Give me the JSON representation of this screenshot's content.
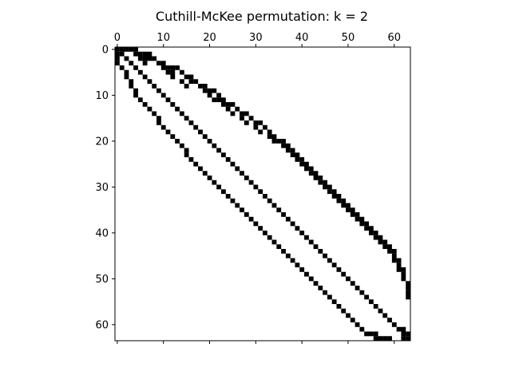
{
  "chart_data": {
    "type": "heatmap",
    "subtype": "sparsity-pattern",
    "title": "Cuthill-McKee permutation: k = 2",
    "matrix_size": 64,
    "x_axis_position": "top",
    "x_ticks": [
      0,
      10,
      20,
      30,
      40,
      50,
      60
    ],
    "y_ticks": [
      0,
      10,
      20,
      30,
      40,
      50,
      60
    ],
    "xlim": [
      -0.5,
      63.5
    ],
    "ylim": [
      63.5,
      -0.5
    ],
    "grid": false,
    "nonzero_color": "#000000",
    "background_color": "#ffffff",
    "description_bands": [
      {
        "name": "main diagonal",
        "offset": 0
      },
      {
        "name": "upper off-diagonal band",
        "offset_from_row": "approx +4 near top, widening to approx +25 at middle, narrowing near bottom"
      },
      {
        "name": "lower off-diagonal band",
        "mirror_of": "upper off-diagonal band"
      }
    ],
    "nonzeros": [
      [
        0,
        0
      ],
      [
        0,
        1
      ],
      [
        0,
        2
      ],
      [
        0,
        3
      ],
      [
        0,
        4
      ],
      [
        1,
        0
      ],
      [
        1,
        1
      ],
      [
        1,
        4
      ],
      [
        1,
        5
      ],
      [
        1,
        6
      ],
      [
        1,
        7
      ],
      [
        2,
        0
      ],
      [
        2,
        2
      ],
      [
        2,
        5
      ],
      [
        2,
        6
      ],
      [
        2,
        7
      ],
      [
        2,
        8
      ],
      [
        3,
        0
      ],
      [
        3,
        3
      ],
      [
        3,
        6
      ],
      [
        3,
        9
      ],
      [
        3,
        10
      ],
      [
        4,
        1
      ],
      [
        4,
        4
      ],
      [
        4,
        10
      ],
      [
        4,
        11
      ],
      [
        4,
        12
      ],
      [
        4,
        13
      ],
      [
        5,
        2
      ],
      [
        5,
        5
      ],
      [
        5,
        11
      ],
      [
        5,
        12
      ],
      [
        5,
        14
      ],
      [
        6,
        2
      ],
      [
        6,
        6
      ],
      [
        6,
        12
      ],
      [
        6,
        15
      ],
      [
        6,
        16
      ],
      [
        7,
        3
      ],
      [
        7,
        7
      ],
      [
        7,
        14
      ],
      [
        7,
        16
      ],
      [
        7,
        17
      ],
      [
        8,
        3
      ],
      [
        8,
        8
      ],
      [
        8,
        15
      ],
      [
        8,
        18
      ],
      [
        8,
        19
      ],
      [
        9,
        4
      ],
      [
        9,
        9
      ],
      [
        9,
        19
      ],
      [
        9,
        20
      ],
      [
        9,
        21
      ],
      [
        10,
        4
      ],
      [
        10,
        10
      ],
      [
        10,
        20
      ],
      [
        10,
        22
      ],
      [
        11,
        5
      ],
      [
        11,
        11
      ],
      [
        11,
        21
      ],
      [
        11,
        22
      ],
      [
        11,
        23
      ],
      [
        12,
        6
      ],
      [
        12,
        12
      ],
      [
        12,
        23
      ],
      [
        12,
        24
      ],
      [
        12,
        25
      ],
      [
        13,
        7
      ],
      [
        13,
        13
      ],
      [
        13,
        24
      ],
      [
        13,
        26
      ],
      [
        14,
        8
      ],
      [
        14,
        14
      ],
      [
        14,
        25
      ],
      [
        14,
        27
      ],
      [
        14,
        28
      ],
      [
        15,
        9
      ],
      [
        15,
        15
      ],
      [
        15,
        27
      ],
      [
        15,
        29
      ],
      [
        16,
        9
      ],
      [
        16,
        16
      ],
      [
        16,
        28
      ],
      [
        16,
        30
      ],
      [
        16,
        31
      ],
      [
        17,
        10
      ],
      [
        17,
        17
      ],
      [
        17,
        30
      ],
      [
        17,
        32
      ],
      [
        18,
        11
      ],
      [
        18,
        18
      ],
      [
        18,
        31
      ],
      [
        18,
        33
      ],
      [
        19,
        12
      ],
      [
        19,
        19
      ],
      [
        19,
        33
      ],
      [
        19,
        34
      ],
      [
        20,
        13
      ],
      [
        20,
        20
      ],
      [
        20,
        34
      ],
      [
        20,
        35
      ],
      [
        20,
        36
      ],
      [
        21,
        14
      ],
      [
        21,
        21
      ],
      [
        21,
        36
      ],
      [
        21,
        37
      ],
      [
        22,
        15
      ],
      [
        22,
        22
      ],
      [
        22,
        37
      ],
      [
        22,
        38
      ],
      [
        23,
        15
      ],
      [
        23,
        23
      ],
      [
        23,
        38
      ],
      [
        23,
        39
      ],
      [
        24,
        16
      ],
      [
        24,
        24
      ],
      [
        24,
        39
      ],
      [
        24,
        40
      ],
      [
        25,
        17
      ],
      [
        25,
        25
      ],
      [
        25,
        40
      ],
      [
        25,
        41
      ],
      [
        26,
        18
      ],
      [
        26,
        26
      ],
      [
        26,
        41
      ],
      [
        26,
        42
      ],
      [
        27,
        19
      ],
      [
        27,
        27
      ],
      [
        27,
        42
      ],
      [
        27,
        43
      ],
      [
        28,
        20
      ],
      [
        28,
        28
      ],
      [
        28,
        43
      ],
      [
        28,
        44
      ],
      [
        29,
        21
      ],
      [
        29,
        29
      ],
      [
        29,
        44
      ],
      [
        29,
        45
      ],
      [
        30,
        22
      ],
      [
        30,
        30
      ],
      [
        30,
        45
      ],
      [
        30,
        46
      ],
      [
        31,
        23
      ],
      [
        31,
        31
      ],
      [
        31,
        46
      ],
      [
        31,
        47
      ],
      [
        32,
        24
      ],
      [
        32,
        32
      ],
      [
        32,
        47
      ],
      [
        32,
        48
      ],
      [
        33,
        25
      ],
      [
        33,
        33
      ],
      [
        33,
        48
      ],
      [
        33,
        49
      ],
      [
        34,
        26
      ],
      [
        34,
        34
      ],
      [
        34,
        49
      ],
      [
        34,
        50
      ],
      [
        35,
        27
      ],
      [
        35,
        35
      ],
      [
        35,
        50
      ],
      [
        35,
        51
      ],
      [
        36,
        28
      ],
      [
        36,
        36
      ],
      [
        36,
        51
      ],
      [
        36,
        52
      ],
      [
        37,
        29
      ],
      [
        37,
        37
      ],
      [
        37,
        52
      ],
      [
        37,
        53
      ],
      [
        38,
        30
      ],
      [
        38,
        38
      ],
      [
        38,
        53
      ],
      [
        38,
        54
      ],
      [
        39,
        31
      ],
      [
        39,
        39
      ],
      [
        39,
        54
      ],
      [
        39,
        55
      ],
      [
        40,
        32
      ],
      [
        40,
        40
      ],
      [
        40,
        55
      ],
      [
        40,
        56
      ],
      [
        41,
        33
      ],
      [
        41,
        41
      ],
      [
        41,
        56
      ],
      [
        41,
        57
      ],
      [
        42,
        34
      ],
      [
        42,
        42
      ],
      [
        42,
        57
      ],
      [
        42,
        58
      ],
      [
        43,
        35
      ],
      [
        43,
        43
      ],
      [
        43,
        58
      ],
      [
        43,
        59
      ],
      [
        44,
        36
      ],
      [
        44,
        44
      ],
      [
        44,
        59
      ],
      [
        44,
        60
      ],
      [
        45,
        37
      ],
      [
        45,
        45
      ],
      [
        45,
        60
      ],
      [
        46,
        38
      ],
      [
        46,
        46
      ],
      [
        46,
        60
      ],
      [
        46,
        61
      ],
      [
        47,
        39
      ],
      [
        47,
        47
      ],
      [
        47,
        61
      ],
      [
        48,
        40
      ],
      [
        48,
        48
      ],
      [
        48,
        61
      ],
      [
        48,
        62
      ],
      [
        49,
        41
      ],
      [
        49,
        49
      ],
      [
        49,
        62
      ],
      [
        50,
        42
      ],
      [
        50,
        50
      ],
      [
        50,
        62
      ],
      [
        51,
        43
      ],
      [
        51,
        51
      ],
      [
        51,
        63
      ],
      [
        52,
        44
      ],
      [
        52,
        52
      ],
      [
        52,
        63
      ],
      [
        53,
        45
      ],
      [
        53,
        53
      ],
      [
        53,
        63
      ],
      [
        54,
        46
      ],
      [
        54,
        54
      ],
      [
        54,
        63
      ],
      [
        55,
        47
      ],
      [
        55,
        55
      ],
      [
        56,
        48
      ],
      [
        56,
        56
      ],
      [
        57,
        49
      ],
      [
        57,
        57
      ],
      [
        58,
        50
      ],
      [
        58,
        58
      ],
      [
        59,
        51
      ],
      [
        59,
        59
      ],
      [
        60,
        52
      ],
      [
        60,
        60
      ],
      [
        61,
        53
      ],
      [
        61,
        61
      ],
      [
        61,
        62
      ],
      [
        62,
        54
      ],
      [
        62,
        55
      ],
      [
        62,
        56
      ],
      [
        62,
        62
      ],
      [
        62,
        63
      ],
      [
        63,
        56
      ],
      [
        63,
        57
      ],
      [
        63,
        58
      ],
      [
        63,
        59
      ],
      [
        63,
        62
      ],
      [
        63,
        63
      ]
    ]
  }
}
